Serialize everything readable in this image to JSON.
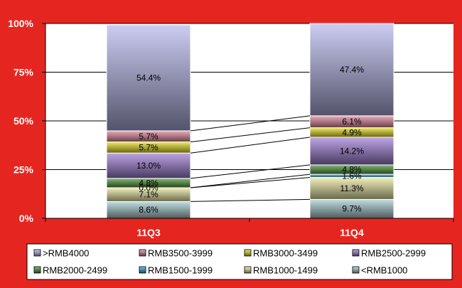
{
  "chart_data": {
    "type": "bar",
    "stacked": true,
    "percent": true,
    "categories": [
      "11Q3",
      "11Q4"
    ],
    "yticks": [
      "0%",
      "25%",
      "50%",
      "75%",
      "100%"
    ],
    "ylim": [
      0,
      100
    ],
    "series_lines": true,
    "legend_position": "bottom",
    "series": [
      {
        "name": "<RMB1000",
        "values": [
          8.6,
          9.7
        ],
        "labels": [
          "8.6%",
          "9.7%"
        ],
        "color": "#a9cfd4"
      },
      {
        "name": "RMB1000-1499",
        "values": [
          7.1,
          11.3
        ],
        "labels": [
          "7.1%",
          "11.3%"
        ],
        "color": "#eceaa2"
      },
      {
        "name": "RMB1500-1999",
        "values": [
          0.0,
          1.6
        ],
        "labels": [
          "0.0%",
          "1.6%"
        ],
        "color": "#39a9dc"
      },
      {
        "name": "RMB2000-2499",
        "values": [
          4.8,
          4.8
        ],
        "labels": [
          "4.8%",
          "4.8%"
        ],
        "color": "#4f9a3a"
      },
      {
        "name": "RMB2500-2999",
        "values": [
          13.0,
          14.2
        ],
        "labels": [
          "13.0%",
          "14.2%"
        ],
        "color": "#a07ed8"
      },
      {
        "name": "RMB3000-3499",
        "values": [
          5.7,
          4.9
        ],
        "labels": [
          "5.7%",
          "4.9%"
        ],
        "color": "#e8df22"
      },
      {
        "name": "RMB3500-3999",
        "values": [
          5.7,
          6.1
        ],
        "labels": [
          "5.7%",
          "6.1%"
        ],
        "color": "#e2899c"
      },
      {
        "name": ">RMB4000",
        "values": [
          54.4,
          47.4
        ],
        "labels": [
          "54.4%",
          "47.4%"
        ],
        "color": "#b8b8ee"
      }
    ],
    "legend_order": [
      ">RMB4000",
      "RMB3500-3999",
      "RMB3000-3499",
      "RMB2500-2999",
      "RMB2000-2499",
      "RMB1500-1999",
      "RMB1000-1499",
      "<RMB1000"
    ]
  }
}
